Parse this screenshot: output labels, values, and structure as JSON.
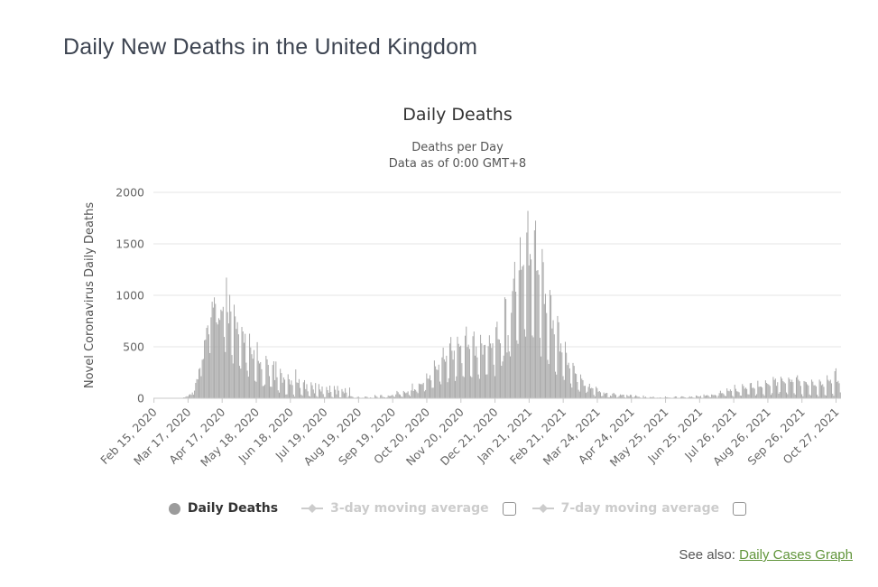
{
  "page": {
    "title": "Daily New Deaths in the United Kingdom",
    "see_also": {
      "prefix": "See also:",
      "link_label": "Daily Cases Graph"
    }
  },
  "chart": {
    "title": "Daily Deaths",
    "subtitle_line1": "Deaths per Day",
    "subtitle_line2": "Data as of 0:00 GMT+8",
    "y_axis_title": "Novel Coronavirus Daily Deaths"
  },
  "legend": {
    "items": [
      {
        "label": "Daily Deaths",
        "marker": "circle",
        "color": "#9b9b9b",
        "text_color": "#333333",
        "visible": true,
        "checkbox": false
      },
      {
        "label": "3-day moving average",
        "marker": "line-diamond",
        "color": "#cccccc",
        "text_color": "#cccccc",
        "visible": false,
        "checkbox": true,
        "checked": false
      },
      {
        "label": "7-day moving average",
        "marker": "line-diamond",
        "color": "#cccccc",
        "text_color": "#cccccc",
        "visible": false,
        "checkbox": true,
        "checked": false
      }
    ]
  },
  "colors": {
    "page_title": "#3d4451",
    "chart_title": "#333333",
    "subtitle": "#555555",
    "axis_text": "#666666",
    "axis_title_text": "#555555",
    "gridline": "#e6e6e6",
    "axis_line": "#c9c9c9",
    "bar": "#a7a7a7",
    "link_green": "#61953b",
    "disabled_legend": "#cccccc"
  },
  "chart_data": {
    "type": "bar",
    "title": "Daily Deaths",
    "subtitle": [
      "Deaths per Day",
      "Data as of 0:00 GMT+8"
    ],
    "xlabel": "",
    "ylabel": "Novel Coronavirus Daily Deaths",
    "ylim": [
      0,
      2000
    ],
    "y_ticks": [
      0,
      500,
      1000,
      1500,
      2000
    ],
    "grid": "horizontal",
    "legend_position": "bottom",
    "start_date": "Feb 15, 2020",
    "end_date": "Oct 31, 2021",
    "x_tick_labels": [
      "Feb 15, 2020",
      "Mar 17, 2020",
      "Apr 17, 2020",
      "May 18, 2020",
      "Jun 18, 2020",
      "Jul 19, 2020",
      "Aug 19, 2020",
      "Sep 19, 2020",
      "Oct 20, 2020",
      "Nov 20, 2020",
      "Dec 21, 2020",
      "Jan 21, 2021",
      "Feb 21, 2021",
      "Mar 24, 2021",
      "Apr 24, 2021",
      "May 25, 2021",
      "Jun 25, 2021",
      "Jul 26, 2021",
      "Aug 26, 2021",
      "Sep 26, 2021",
      "Oct 27, 2021"
    ],
    "x_tick_day_indices": [
      0,
      31,
      62,
      93,
      124,
      155,
      186,
      217,
      248,
      279,
      310,
      341,
      372,
      403,
      434,
      465,
      496,
      527,
      558,
      589,
      620
    ],
    "series": [
      {
        "name": "Daily Deaths",
        "type": "column",
        "color": "#a7a7a7",
        "visible": true,
        "values": [
          0,
          0,
          0,
          0,
          0,
          0,
          0,
          0,
          0,
          0,
          0,
          0,
          0,
          0,
          1,
          0,
          0,
          0,
          0,
          1,
          1,
          0,
          2,
          1,
          3,
          4,
          2,
          8,
          8,
          14,
          20,
          16,
          33,
          40,
          33,
          56,
          35,
          74,
          149,
          186,
          183,
          284,
          294,
          214,
          374,
          382,
          563,
          569,
          684,
          708,
          621,
          439,
          786,
          938,
          881,
          980,
          917,
          737,
          717,
          778,
          761,
          861,
          847,
          888,
          596,
          449,
          1172,
          837,
          727,
          1005,
          843,
          420,
          338,
          909,
          795,
          674,
          739,
          621,
          315,
          288,
          693,
          649,
          539,
          626,
          346,
          268,
          210,
          627,
          494,
          428,
          384,
          468,
          170,
          160,
          545,
          363,
          338,
          351,
          282,
          118,
          121,
          134,
          412,
          377,
          324,
          215,
          113,
          111,
          324,
          359,
          176,
          357,
          204,
          77,
          55,
          286,
          245,
          151,
          202,
          181,
          36,
          38,
          233,
          184,
          135,
          173,
          128,
          36,
          15,
          280,
          154,
          149,
          186,
          100,
          36,
          25,
          155,
          176,
          89,
          137,
          67,
          22,
          16,
          155,
          126,
          85,
          48,
          148,
          21,
          11,
          138,
          85,
          66,
          114,
          40,
          11,
          11,
          110,
          79,
          53,
          123,
          61,
          14,
          7,
          119,
          83,
          38,
          120,
          74,
          8,
          9,
          89,
          65,
          49,
          98,
          55,
          8,
          21,
          104,
          20,
          18,
          12,
          3,
          5,
          4,
          12,
          16,
          6,
          2,
          1,
          6,
          4,
          16,
          16,
          12,
          2,
          1,
          9,
          2,
          2,
          3,
          32,
          21,
          13,
          3,
          3,
          30,
          32,
          14,
          11,
          9,
          5,
          9,
          27,
          21,
          21,
          27,
          34,
          18,
          11,
          37,
          71,
          59,
          40,
          34,
          17,
          13,
          71,
          59,
          49,
          55,
          67,
          33,
          19,
          76,
          143,
          70,
          87,
          81,
          65,
          50,
          143,
          137,
          138,
          136,
          150,
          67,
          80,
          241,
          191,
          189,
          224,
          174,
          102,
          103,
          367,
          310,
          280,
          274,
          326,
          162,
          136,
          397,
          492,
          378,
          355,
          413,
          156,
          194,
          532,
          595,
          462,
          376,
          462,
          168,
          213,
          598,
          529,
          501,
          511,
          341,
          215,
          206,
          608,
          696,
          498,
          521,
          479,
          215,
          205,
          603,
          648,
          414,
          504,
          397,
          231,
          189,
          616,
          533,
          424,
          516,
          519,
          231,
          232,
          506,
          612,
          532,
          489,
          534,
          326,
          215,
          691,
          744,
          574,
          570,
          534,
          316,
          357,
          414,
          981,
          964,
          445,
          613,
          454,
          407,
          830,
          1041,
          1162,
          1325,
          1035,
          563,
          529,
          1243,
          1564,
          1248,
          1280,
          1295,
          671,
          599,
          1610,
          1820,
          1290,
          1401,
          1348,
          610,
          592,
          1631,
          1725,
          1239,
          1245,
          1200,
          587,
          406,
          1449,
          1322,
          915,
          1014,
          828,
          373,
          333,
          1052,
          1001,
          678,
          758,
          621,
          258,
          230,
          799,
          738,
          454,
          533,
          445,
          215,
          178,
          548,
          442,
          323,
          345,
          290,
          144,
          104,
          343,
          315,
          242,
          236,
          158,
          82,
          65,
          231,
          190,
          175,
          121,
          121,
          52,
          64,
          110,
          141,
          95,
          101,
          96,
          33,
          17,
          112,
          98,
          63,
          70,
          58,
          19,
          23,
          56,
          43,
          51,
          52,
          10,
          10,
          26,
          20,
          45,
          53,
          40,
          32,
          7,
          13,
          23,
          38,
          30,
          34,
          35,
          10,
          4,
          33,
          22,
          18,
          34,
          32,
          11,
          6,
          17,
          29,
          22,
          14,
          15,
          7,
          1,
          1,
          27,
          9,
          15,
          6,
          2,
          1,
          12,
          11,
          9,
          17,
          6,
          4,
          5,
          7,
          3,
          9,
          6,
          4,
          1,
          5,
          18,
          9,
          10,
          6,
          7,
          1,
          1,
          3,
          12,
          18,
          17,
          4,
          4,
          1,
          13,
          19,
          17,
          11,
          8,
          4,
          3,
          9,
          19,
          11,
          17,
          8,
          5,
          3,
          27,
          22,
          16,
          15,
          23,
          5,
          3,
          37,
          22,
          27,
          31,
          26,
          13,
          9,
          37,
          33,
          29,
          34,
          26,
          6,
          24,
          50,
          73,
          49,
          51,
          41,
          25,
          19,
          96,
          73,
          68,
          86,
          71,
          24,
          14,
          131,
          91,
          68,
          65,
          58,
          26,
          24,
          138,
          119,
          92,
          103,
          90,
          39,
          37,
          146,
          149,
          100,
          103,
          93,
          26,
          40,
          170,
          111,
          114,
          113,
          104,
          40,
          26,
          174,
          149,
          140,
          133,
          120,
          33,
          50,
          207,
          178,
          191,
          121,
          156,
          45,
          61,
          209,
          191,
          167,
          156,
          145,
          56,
          40,
          201,
          185,
          158,
          180,
          157,
          49,
          36,
          203,
          223,
          180,
          165,
          120,
          39,
          19,
          167,
          161,
          156,
          136,
          124,
          37,
          28,
          181,
          161,
          126,
          127,
          116,
          34,
          17,
          181,
          163,
          127,
          136,
          111,
          32,
          25,
          223,
          179,
          165,
          180,
          145,
          44,
          24,
          263,
          291,
          158,
          169,
          146,
          57
        ]
      },
      {
        "name": "3-day moving average",
        "type": "line",
        "color": "#cccccc",
        "visible": false,
        "values": []
      },
      {
        "name": "7-day moving average",
        "type": "line",
        "color": "#cccccc",
        "visible": false,
        "values": []
      }
    ]
  }
}
